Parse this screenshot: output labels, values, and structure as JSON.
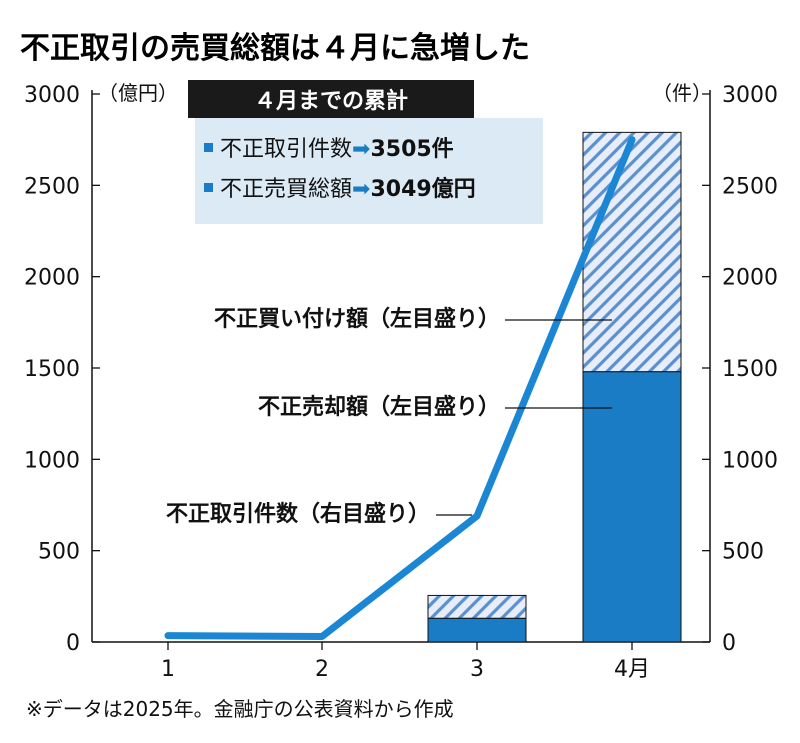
{
  "title": "不正取引の売買総額は４月に急増した",
  "summary_box": {
    "title": "４月までの累計",
    "items": [
      {
        "label": "不正取引件数",
        "arrow": "➡",
        "value": "3505件"
      },
      {
        "label": "不正売買総額",
        "arrow": "➡",
        "value": "3049億円"
      }
    ]
  },
  "note": "※データは2025年。金融庁の公表資料から作成",
  "chart_data": {
    "type": "bar",
    "categories": [
      "1",
      "2",
      "3",
      "4月"
    ],
    "left_axis": {
      "unit": "（億円）",
      "ylim": [
        0,
        3000
      ],
      "ticks": [
        "0",
        "500",
        "1000",
        "1500",
        "2000",
        "2500",
        "3000"
      ]
    },
    "right_axis": {
      "unit": "（件）",
      "ylim": [
        0,
        3000
      ],
      "ticks": [
        "0",
        "500",
        "1000",
        "1500",
        "2000",
        "2500",
        "3000"
      ]
    },
    "stacked_bars": [
      {
        "name": "不正売却額（左目盛り）",
        "axis": "left",
        "pattern": "solid",
        "color": "#1a7cc4",
        "values": [
          0,
          0,
          130,
          1480
        ]
      },
      {
        "name": "不正買い付け額（左目盛り）",
        "axis": "left",
        "pattern": "hatched",
        "color": "#5a8fd0",
        "values": [
          0,
          0,
          125,
          1310
        ]
      }
    ],
    "line": {
      "name": "不正取引件数（右目盛り）",
      "axis": "right",
      "color": "#1a86d4",
      "values": [
        35,
        30,
        690,
        2750
      ]
    }
  }
}
